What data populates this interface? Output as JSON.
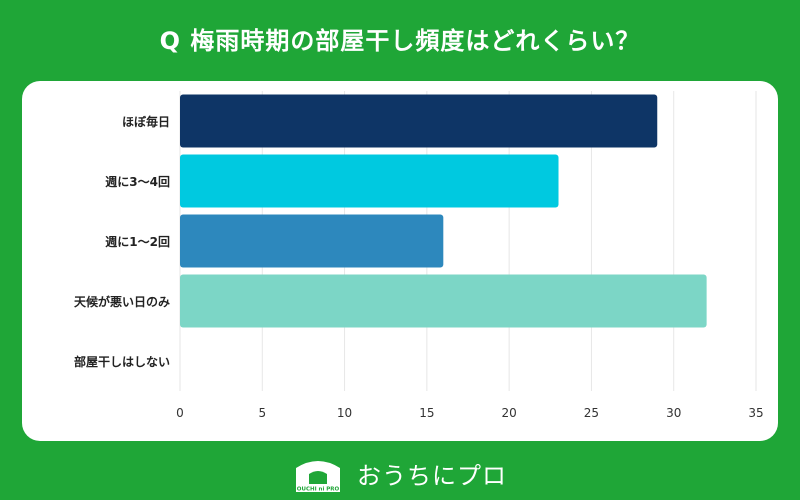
{
  "title": "Q 梅雨時期の部屋干し頻度はどれくらい？",
  "chart_data": {
    "type": "bar",
    "orientation": "horizontal",
    "categories": [
      "ほぼ毎日",
      "週に3～4回",
      "週に1～2回",
      "天候が悪い日のみ",
      "部屋干しはしない"
    ],
    "values": [
      29,
      23,
      16,
      32,
      0
    ],
    "colors": [
      "#0e3566",
      "#00c9e0",
      "#2d88bd",
      "#7cd6c6",
      "#7cd6c6"
    ],
    "xlim": [
      0,
      35
    ],
    "xticks": [
      "0",
      "5",
      "10",
      "15",
      "20",
      "25",
      "30",
      "35"
    ],
    "grid": true
  },
  "footer": {
    "logo_text": "OUCHI ni PRO",
    "brand": "おうちにプロ"
  },
  "colors": {
    "background": "#1fa637",
    "card": "#ffffff",
    "grid": "#e6e6e6"
  }
}
